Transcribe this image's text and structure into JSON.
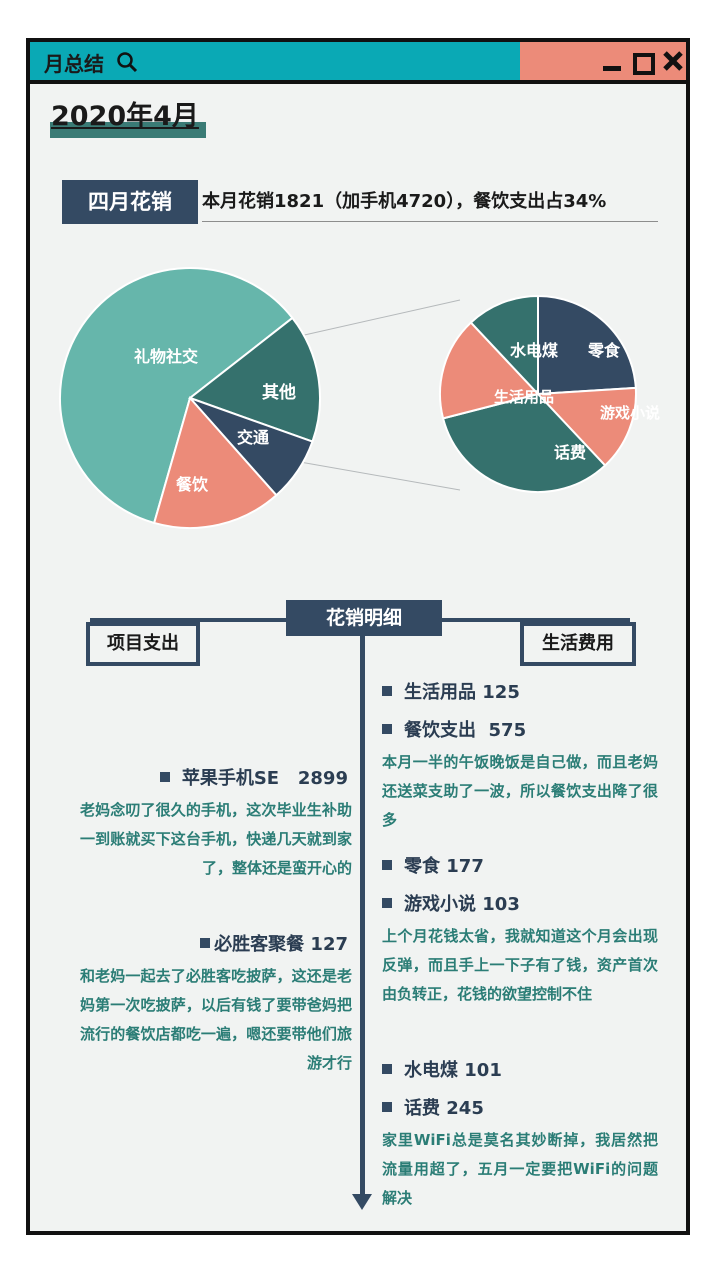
{
  "window": {
    "title": "月总结"
  },
  "date": "2020年4月",
  "section": {
    "tag": "四月花销",
    "summary": "本月花销1821（加手机4720），餐饮支出占34%"
  },
  "colors": {
    "teal_light": "#66b6ab",
    "teal_dark": "#35716d",
    "navy": "#344a63",
    "salmon": "#ec8b79",
    "title_teal": "#0aa9b5"
  },
  "chart_data": {
    "type": "pie-of-pie",
    "main_pie": {
      "labels": [
        "礼物社交",
        "其他",
        "交通",
        "餐饮"
      ],
      "values": [
        0.6,
        0.16,
        0.08,
        0.16
      ]
    },
    "sub_pie": {
      "labels": [
        "零食",
        "游戏小说",
        "话费",
        "生活用品",
        "水电煤"
      ],
      "values": [
        0.24,
        0.14,
        0.33,
        0.17,
        0.12
      ]
    }
  },
  "detail": {
    "header": "花销明细",
    "left_title": "项目支出",
    "right_title": "生活费用",
    "left_items": [
      {
        "label": "苹果手机SE   2899",
        "desc": "老妈念叨了很久的手机，这次毕业生补助一到账就买下这台手机，快递几天就到家了，整体还是蛮开心的"
      },
      {
        "label": "必胜客聚餐 127",
        "desc": "和老妈一起去了必胜客吃披萨，这还是老妈第一次吃披萨，以后有钱了要带爸妈把流行的餐饮店都吃一遍，嗯还要带他们旅游才行"
      }
    ],
    "right_items": [
      {
        "label": "生活用品 125",
        "desc": ""
      },
      {
        "label": "餐饮支出  575",
        "desc": "本月一半的午饭晚饭是自己做，而且老妈还送菜支助了一波，所以餐饮支出降了很多"
      },
      {
        "label": "零食 177",
        "desc": ""
      },
      {
        "label": "游戏小说 103",
        "desc": "上个月花钱太省，我就知道这个月会出现反弹，而且手上一下子有了钱，资产首次由负转正，花钱的欲望控制不住"
      },
      {
        "label": "水电煤 101",
        "desc": ""
      },
      {
        "label": "话费 245",
        "desc": "家里WiFi总是莫名其妙断掉，我居然把流量用超了，五月一定要把WiFi的问题解决"
      }
    ]
  }
}
